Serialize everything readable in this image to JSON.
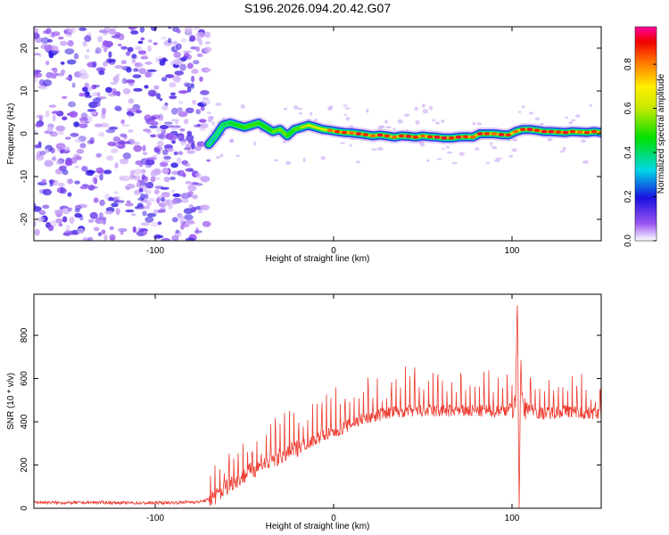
{
  "title": "S196.2026.094.20.42.G07",
  "colors": {
    "trace": "#ee3b2f",
    "axis": "#000000",
    "noise": "#9a55f0"
  },
  "chart_data": [
    {
      "type": "heatmap",
      "title": "S196.2026.094.20.42.G07",
      "xlabel": "Height of straight line (km)",
      "ylabel": "Frequency (Hz)",
      "xlim": [
        -168,
        150
      ],
      "ylim": [
        -25,
        25
      ],
      "xticks": [
        -100,
        0,
        100
      ],
      "yticks": [
        -20,
        -10,
        0,
        10,
        20
      ],
      "noise_region_x": [
        -168,
        -70
      ],
      "ridge": {
        "x": [
          -70,
          -66,
          -62,
          -58,
          -54,
          -50,
          -46,
          -42,
          -38,
          -34,
          -30,
          -26,
          -22,
          -18,
          -14,
          -10,
          -6,
          -2,
          2,
          6,
          10,
          14,
          18,
          22,
          26,
          30,
          34,
          38,
          42,
          46,
          50,
          54,
          58,
          62,
          66,
          70,
          74,
          78,
          82,
          86,
          90,
          94,
          98,
          102,
          106,
          110,
          114,
          118,
          122,
          126,
          130,
          134,
          138,
          142,
          146,
          150
        ],
        "freq": [
          -2.5,
          -0.5,
          2.0,
          2.5,
          2.0,
          1.5,
          2.0,
          2.5,
          1.5,
          0.5,
          1.0,
          -0.5,
          1.0,
          1.5,
          2.0,
          1.5,
          1.0,
          0.8,
          0.5,
          0.3,
          0.2,
          0.0,
          -0.2,
          -0.5,
          -0.3,
          -0.5,
          -0.8,
          -0.5,
          -0.6,
          -0.8,
          -0.5,
          -0.7,
          -0.8,
          -1.0,
          -1.0,
          -0.8,
          -0.7,
          -0.8,
          0.0,
          0.0,
          0.0,
          -0.2,
          -0.3,
          0.5,
          1.0,
          1.0,
          0.8,
          0.5,
          0.5,
          0.4,
          0.3,
          0.5,
          0.4,
          0.3,
          0.5,
          0.3
        ],
        "amplitude": [
          0.35,
          0.4,
          0.45,
          0.5,
          0.55,
          0.6,
          0.6,
          0.6,
          0.55,
          0.6,
          0.7,
          0.6,
          0.55,
          0.7,
          0.75,
          0.8,
          0.75,
          0.85,
          0.9,
          0.9,
          0.85,
          0.95,
          0.9,
          0.85,
          0.95,
          0.9,
          0.85,
          0.9,
          0.95,
          0.9,
          0.85,
          0.9,
          0.95,
          0.95,
          0.9,
          0.95,
          0.9,
          0.85,
          0.95,
          0.9,
          0.85,
          0.95,
          0.9,
          0.85,
          0.9,
          0.95,
          0.9,
          0.95,
          0.95,
          0.9,
          0.95,
          0.9,
          0.85,
          0.9,
          0.9,
          0.85
        ]
      },
      "colorbar": {
        "label": "Normalized spectral amplitude",
        "ticks": [
          0.0,
          0.2,
          0.4,
          0.6,
          0.8
        ],
        "range": [
          0,
          0.97
        ]
      }
    },
    {
      "type": "line",
      "xlabel": "Height of straight line (km)",
      "ylabel": "SNR (10 * v/v)",
      "xlim": [
        -168,
        150
      ],
      "ylim": [
        0,
        990
      ],
      "xticks": [
        -100,
        0,
        100
      ],
      "yticks": [
        0,
        200,
        400,
        600,
        800
      ],
      "series": [
        {
          "name": "SNR",
          "x": [
            -168,
            -150,
            -130,
            -110,
            -90,
            -75,
            -70,
            -65,
            -60,
            -55,
            -50,
            -45,
            -40,
            -35,
            -30,
            -25,
            -20,
            -15,
            -10,
            -5,
            0,
            5,
            10,
            15,
            20,
            25,
            30,
            35,
            40,
            45,
            50,
            60,
            70,
            80,
            90,
            95,
            100,
            102,
            103,
            104,
            105,
            106,
            110,
            115,
            120,
            130,
            140,
            150
          ],
          "y": [
            28,
            25,
            27,
            24,
            26,
            30,
            40,
            60,
            100,
            130,
            150,
            180,
            200,
            220,
            240,
            260,
            280,
            300,
            320,
            340,
            350,
            370,
            390,
            410,
            420,
            430,
            440,
            445,
            450,
            450,
            450,
            450,
            450,
            450,
            450,
            455,
            460,
            500,
            980,
            30,
            700,
            450,
            470,
            440,
            440,
            450,
            440,
            440
          ]
        }
      ]
    }
  ]
}
